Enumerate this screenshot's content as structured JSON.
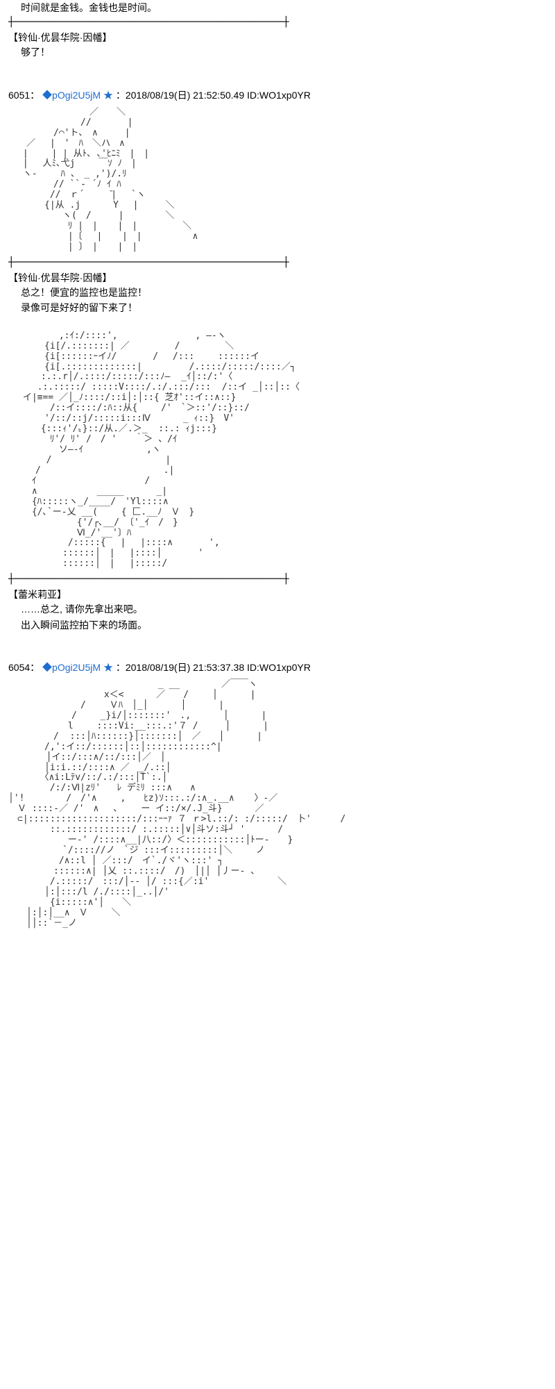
{
  "intro": {
    "dialogue": "时间就是金钱。金钱也是时间。",
    "speaker_after": "【铃仙·优昙华院·因幡】",
    "dialogue_after": "够了！"
  },
  "post1": {
    "id": "6051",
    "sep": "：",
    "tripcode": "◆pOgi2U5jM",
    "star": "★",
    "datetime": "：2018/08/19(日) 21:52:50.49",
    "idstr": "ID:WO1xp0YR",
    "speaker1": "【铃仙·优昙华院·因幡】",
    "d1a": "总之！便宜的监控也是监控！",
    "d1b": "录像可是好好的留下来了！",
    "speaker2": "【蕾米莉亚】",
    "d2a": "……总之, 请你先拿出来吧。",
    "d2b": "出入瞬间监控拍下来的场面。"
  },
  "post2": {
    "id": "6054",
    "sep": "：",
    "tripcode": "◆pOgi2U5jM",
    "star": "★",
    "datetime": "：2018/08/19(日) 21:53:37.38",
    "idstr": "ID:WO1xp0YR"
  },
  "divider": "┼──────────────────────────────────────────────┼",
  "aa1": "　　　　　　　　　／　　＼\n　　　　　　　　//　　　　|\n　　　　　/⌒'ト､　∧　　　|\n　　／　 |　'　ﾊ　＼ハ　∧\n　 |　 　| | 从ﾄ､ ､'ﾋﾆﾐ　|　|\n　 |　 人ﾐ､弋j　　 ￣ｿ ﾉ　|\n　 ヽ-　　 ﾊ 、　_ ,')/.ﾘ\n　　　　　// ``- ´ﾉ ｲ ﾊ\n　　　　 //　ｒ´　　　̄|　 `ヽ\n　　　　{|从 .j　　　 Y　 |　　　＼\n　　　　　　ヽ(　/　　　|　　　　 ＼\n　　　　　　 ﾘ |　| 　 |　|　　　　　＼\n　　　　　　 |〔　 | 　 |　|　 　　　　∧\n　　　　　　 | 〕　| 　 |　|",
  "aa2": "　　　　　 ,:ｲ:/::::',　　　　　　　　 , ―-ヽ\n　　　　{i[/.:::::::| ／　　　　　/　　　　　＼\n　　　　{i[::::::ｰイﾉ/　　　　/　 /:::　　 ::::::イ\n　　　　{i[.:::::::::::::|　　　　  /.::::/:::::/::::／┐\n　　　 :.:.r│/.::::/:::::/:::ﾉ―  _ｲ│::/:'〈\n　 　 .:.:::::/ :::::V::::/.:/.:::/:::  /::イ _│::│::〈\n　 イ|≡== ／│_ﾉ::::/::i│:│::{ 芝ｵ'::イ::∧::}\n　　　　 /::イ::::/:ﾊ::从{　　 /'　`＞::'/::}::/\n　　　　'/::/::j/:::::i:::Ⅳ　 　　_ ｨ::}　V'\n　　　 {:::ｨ'/〟}::/从.／.＞_  ::.: ｨj:::}\n　　　　 ﾘ'/ ﾘ' /　/ '　　｀＞ 、/ｲ\n　　　　　 ソ―-ｲ　　　　　　　,ヽ\n　　 　 /　　　　　　　　　　　　 |\n　　　/　　　　　　　　　　　　　 .|\n　　 ｲ　　　　　　　　　　　　/\n　　 ∧　　　　　　 _____　　　 _|\n　　 {ﾊ:::::ヽ_/____/　'Yl::::∧\n　　 {/､`ー-乂 __(　 　{ 匚.__ﾉ　Ｖ　}\n　　　　　　　 {'/┌､__/ 〔'_ｲ　/　}\n　　　　　　　 Ⅵ_/'__'〕ﾊ\n　　　　　　 /:::::{　 |　 |::::∧　　　　',\n　　　　　　::::::│　| 　|::::│　　　　'\n　　　　　　::::::│　| 　|:::::/",
  "aa3": "　　　　　　　　　　　　　　　　 _ __　　　　 ／￣￣ヽ\n　　　　　　　　　　 x＜<　　　 ／　　/　　 │　　　 |\n　　　　　　　　/　　 Ｖﾊ　│_│　　　 │　　　 |\n　　　　　　　/　 　_}i/│:::::::'　.,　　　 │　　　 |\n　　　　　　 l　　 ::::Vi:__:::.:'７ /　　　│　　　 |\n　　　　　/  :::│ﾊ::::::}│:::::::│　／　　│　　　 |\n　　　　/,':イ::/::::::│::│::::::::::::^|\n　　　  │イ::/:::∧/::/:::│／　│\n　　　　│i:i.::/::::∧ ／　_/.::│\n　　　　〈∧i:Lﾃv/::/.:/:::│T`:.│\n　　　　 /:/:Ⅵ|zﾘ'   ﾚ デﾐﾘ :::∧　　∧\n│'!　　　　 /　/'∧　　 ,　　ﾋz)ｿ:::.:/:∧_.__∧ 　 〉-／\n　Ｖ ::::-／ /'　∧　 、　　 ー イ::/×/.J_斗}　　　 ／\n　⊂|::::::::::::::::::::/:::ｰｰｧ ７ ｒ>l.::/: :/:::::/　卜' 　　 /\n　　　　 ::.::::::::::::/ :.:::::│∨│斗ソ:斗┘ '　　　 /\n　　　　　　 ー-' /::::∧__|八::/〉＜:::::::::::│ﾄー-　　}\n　　　　　　`/:::://ノ　`ジ :::イ:::::::::│＼　　 ノ\n　　　　　 /∧::l │ ／:::/　イ`./ヾ'ヽ:::' ┐\n　　　　　::::::∧| │乂 ::.::::/　/)　│|│ │丿ー- 、\n　　　　 /.:::::/　:::/│-- │/ :::{／:i'　　　　　　　 ＼\n　　　　│:│:::/l /./::::│_..│/'\n　　　　 {i:::::∧'│　　＼\n　　│:│:│__∧　Ｖ　　 ＼\n　　││::`－_ノ"
}
